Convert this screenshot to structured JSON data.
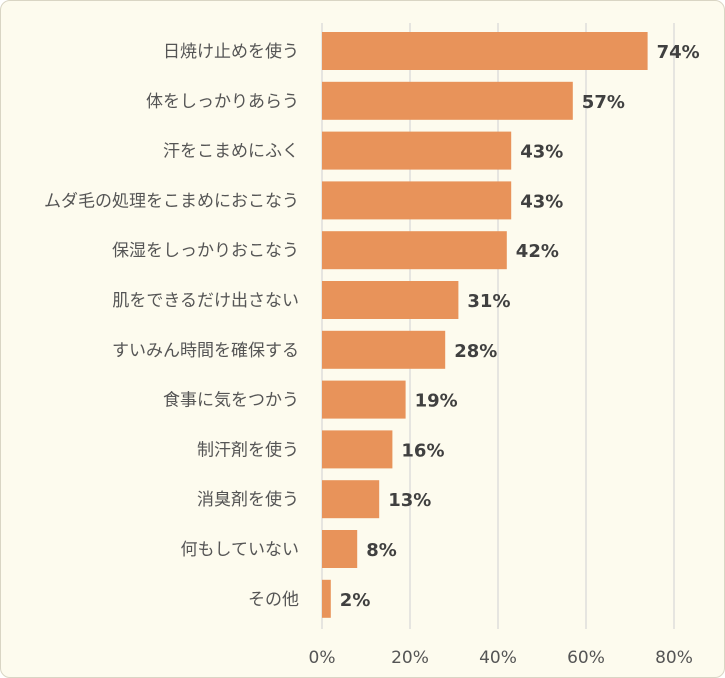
{
  "chart_data": {
    "type": "bar",
    "orientation": "horizontal",
    "categories": [
      "日焼け止めを使う",
      "体をしっかりあらう",
      "汗をこまめにふく",
      "ムダ毛の処理をこまめにおこなう",
      "保湿をしっかりおこなう",
      "肌をできるだけ出さない",
      "すいみん時間を確保する",
      "食事に気をつかう",
      "制汗剤を使う",
      "消臭剤を使う",
      "何もしていない",
      "その他"
    ],
    "values": [
      74,
      57,
      43,
      43,
      42,
      31,
      28,
      19,
      16,
      13,
      8,
      2
    ],
    "data_labels": [
      "74%",
      "57%",
      "43%",
      "43%",
      "42%",
      "31%",
      "28%",
      "19%",
      "16%",
      "13%",
      "8%",
      "2%"
    ],
    "xlim": [
      0,
      80
    ],
    "xticks": [
      0,
      20,
      40,
      60,
      80
    ],
    "xtick_labels": [
      "0%",
      "20%",
      "40%",
      "60%",
      "80%"
    ],
    "grid": true,
    "bar_color": "#e8935a",
    "background_color": "#fdfbee"
  }
}
